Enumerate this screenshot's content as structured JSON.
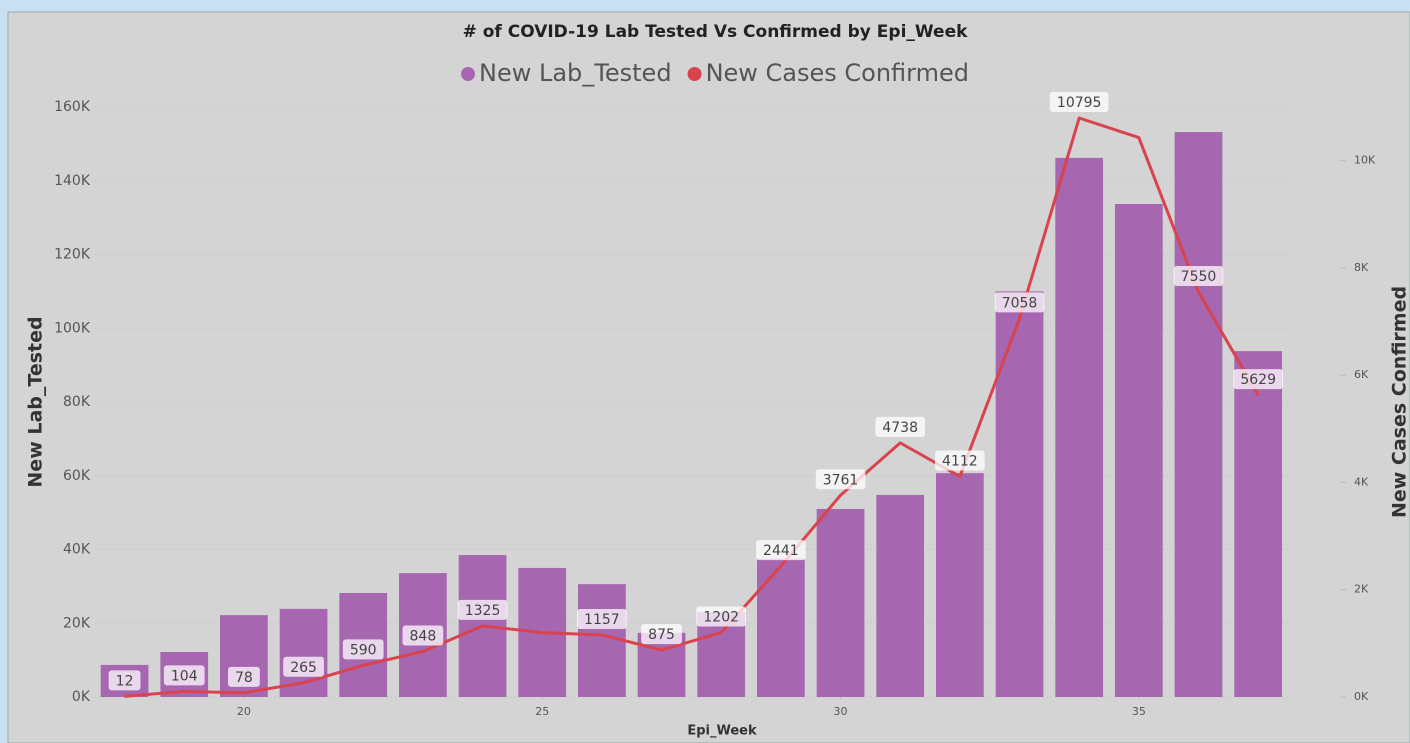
{
  "chart_data": {
    "type": "bar_line",
    "title": "# of COVID-19 Lab Tested Vs Confirmed by Epi_Week",
    "x_label": "Epi_Week",
    "y_label": "New Lab_Tested",
    "y2_label": "New Cases Confirmed",
    "x": [
      18,
      19,
      20,
      21,
      22,
      23,
      24,
      25,
      26,
      27,
      28,
      29,
      30,
      31,
      32,
      33,
      34,
      35,
      36,
      37
    ],
    "xlim": [
      17.5,
      37.5
    ],
    "xticks": [
      20,
      25,
      30,
      35
    ],
    "ylim": [
      0,
      160000
    ],
    "yticks": [
      {
        "value": 0,
        "label": "0K"
      },
      {
        "value": 20000,
        "label": "20K"
      },
      {
        "value": 40000,
        "label": "40K"
      },
      {
        "value": 60000,
        "label": "60K"
      },
      {
        "value": 80000,
        "label": "80K"
      },
      {
        "value": 100000,
        "label": "100K"
      },
      {
        "value": 120000,
        "label": "120K"
      },
      {
        "value": 140000,
        "label": "140K"
      },
      {
        "value": 160000,
        "label": "160K"
      }
    ],
    "y2lim": [
      0,
      11000
    ],
    "y2ticks": [
      {
        "value": 0,
        "label": "0K"
      },
      {
        "value": 2000,
        "label": "2K"
      },
      {
        "value": 4000,
        "label": "4K"
      },
      {
        "value": 6000,
        "label": "6K"
      },
      {
        "value": 8000,
        "label": "8K"
      },
      {
        "value": 10000,
        "label": "10K"
      }
    ],
    "grid": true,
    "legend": "top",
    "series": [
      {
        "name": "New Lab_Tested",
        "kind": "bar",
        "color": "#a666b0",
        "values": [
          8700,
          12200,
          22200,
          23900,
          28200,
          33600,
          38500,
          35000,
          30600,
          17400,
          23000,
          37500,
          51000,
          54800,
          60700,
          110000,
          146200,
          133700,
          153200,
          93800
        ]
      },
      {
        "name": "New Cases Confirmed",
        "kind": "line",
        "axis": "y2",
        "color": "#d9434e",
        "values": [
          12,
          104,
          78,
          265,
          590,
          848,
          1325,
          1200,
          1157,
          875,
          1202,
          2441,
          3761,
          4738,
          4112,
          7058,
          10795,
          10430,
          7550,
          5629
        ],
        "value_labels": [
          "12",
          "104",
          "78",
          "265",
          "590",
          "848",
          "1325",
          null,
          "1157",
          "875",
          "1202",
          "2441",
          "3761",
          "4738",
          "4112",
          "7058",
          "10795",
          null,
          "7550",
          "5629"
        ]
      }
    ]
  }
}
